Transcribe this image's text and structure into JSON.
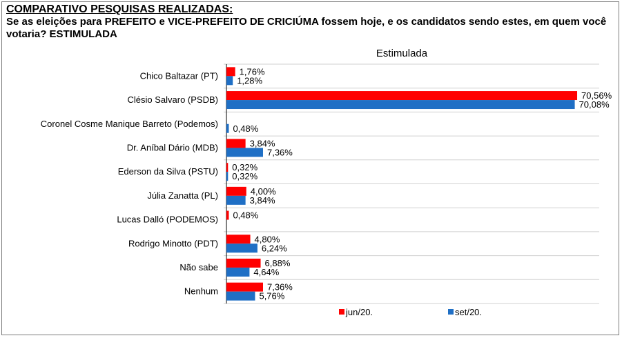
{
  "header": {
    "title": "COMPARATIVO PESQUISAS REALIZADAS:",
    "question": "Se as eleições para PREFEITO e VICE-PREFEITO DE CRICIÚMA fossem hoje, e os candidatos sendo estes, em quem você votaria? ESTIMULADA"
  },
  "chart_data": {
    "type": "bar",
    "orientation": "horizontal",
    "title": "Estimulada",
    "categories": [
      "Chico Baltazar (PT)",
      "Clésio Salvaro (PSDB)",
      "Coronel Cosme Manique Barreto (Podemos)",
      "Dr. Aníbal Dário (MDB)",
      "Ederson da Silva (PSTU)",
      "Júlia Zanatta (PL)",
      "Lucas Dalló (PODEMOS)",
      "Rodrigo Minotto (PDT)",
      "Não sabe",
      "Nenhum"
    ],
    "series": [
      {
        "name": "jun/20.",
        "color": "#ff0000",
        "values": [
          1.76,
          70.56,
          null,
          3.84,
          0.32,
          4.0,
          0.48,
          4.8,
          6.88,
          7.36
        ],
        "labels": [
          "1,76%",
          "70,56%",
          "",
          "3,84%",
          "0,32%",
          "4,00%",
          "0,48%",
          "4,80%",
          "6,88%",
          "7,36%"
        ]
      },
      {
        "name": "set/20.",
        "color": "#1f6fc5",
        "values": [
          1.28,
          70.08,
          0.48,
          7.36,
          0.32,
          3.84,
          null,
          6.24,
          4.64,
          5.76
        ],
        "labels": [
          "1,28%",
          "70,08%",
          "0,48%",
          "7,36%",
          "0,32%",
          "3,84%",
          "",
          "6,24%",
          "4,64%",
          "5,76%"
        ]
      }
    ],
    "xlim": [
      0,
      75
    ],
    "grid": "horizontal separators",
    "legend_position": "bottom"
  }
}
